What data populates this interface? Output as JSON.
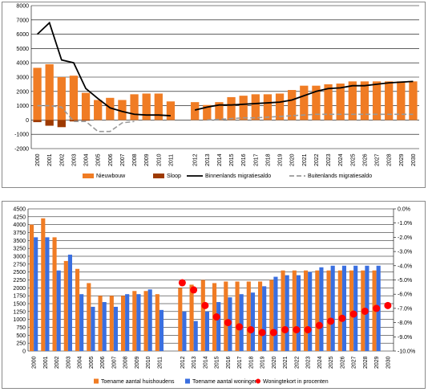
{
  "chart_data": [
    {
      "type": "bar",
      "x": [
        "2000",
        "2001",
        "2002",
        "2003",
        "2004",
        "2005",
        "2006",
        "2007",
        "2008",
        "2009",
        "2010",
        "2011",
        "",
        "2012",
        "2013",
        "2014",
        "2015",
        "2016",
        "2017",
        "2018",
        "2019",
        "2020",
        "2021",
        "2022",
        "2023",
        "2024",
        "2025",
        "2026",
        "2027",
        "2028",
        "2029",
        "2030"
      ],
      "ylim": [
        -2000,
        8000
      ],
      "yticks": [
        -2000,
        -1000,
        0,
        1000,
        2000,
        3000,
        4000,
        5000,
        6000,
        7000,
        8000
      ],
      "grid": true,
      "legend_position": "bottom",
      "series": [
        {
          "name": "Nieuwbouw",
          "kind": "bar",
          "color": "#f07c24",
          "values": [
            3650,
            3900,
            3000,
            3100,
            1900,
            1400,
            1550,
            1400,
            1800,
            1850,
            1850,
            1300,
            null,
            1250,
            1050,
            1250,
            1600,
            1700,
            1800,
            1800,
            1850,
            2100,
            2400,
            2400,
            2500,
            2550,
            2700,
            2700,
            2700,
            2700,
            2700,
            2700
          ]
        },
        {
          "name": "Sloop",
          "kind": "bar",
          "color": "#9e3a00",
          "values": [
            -150,
            -400,
            -500,
            -100,
            -50,
            null,
            null,
            null,
            null,
            null,
            null,
            null,
            null,
            null,
            null,
            null,
            null,
            null,
            null,
            null,
            null,
            null,
            null,
            null,
            null,
            null,
            null,
            null,
            null,
            null,
            null,
            null
          ]
        },
        {
          "name": "Binnenlands migratiesaldo",
          "kind": "line",
          "style": "solid",
          "color": "#000000",
          "values": [
            6000,
            6800,
            4200,
            4000,
            2200,
            1500,
            850,
            600,
            400,
            350,
            350,
            300,
            null,
            700,
            900,
            1050,
            1050,
            1100,
            1150,
            1200,
            1250,
            1400,
            1700,
            2000,
            2200,
            2250,
            2400,
            2400,
            2500,
            2600,
            2650,
            2700
          ]
        },
        {
          "name": "Buitenlands migratiesaldo",
          "kind": "line",
          "style": "dashed",
          "color": "#999999",
          "values": [
            1000,
            1000,
            900,
            -100,
            -100,
            -800,
            -800,
            -200,
            -100,
            null,
            null,
            null,
            null,
            null,
            0,
            50,
            100,
            150,
            150,
            200,
            250,
            300,
            350,
            400,
            400,
            400,
            400,
            400,
            400,
            400,
            400,
            400
          ]
        }
      ]
    },
    {
      "type": "bar",
      "x": [
        "2000",
        "2001",
        "2002",
        "2003",
        "2004",
        "2005",
        "2006",
        "2007",
        "2008",
        "2009",
        "2010",
        "2011",
        "",
        "2012",
        "2013",
        "2014",
        "2015",
        "2016",
        "2017",
        "2018",
        "2019",
        "2020",
        "2021",
        "2022",
        "2023",
        "2024",
        "2025",
        "2026",
        "2027",
        "2028",
        "2029",
        "2030"
      ],
      "ylim": [
        0,
        4500
      ],
      "yticks": [
        0,
        250,
        500,
        750,
        1000,
        1250,
        1500,
        1750,
        2000,
        2250,
        2500,
        2750,
        3000,
        3250,
        3500,
        3750,
        4000,
        4250,
        4500
      ],
      "y2lim": [
        -10,
        0
      ],
      "y2ticks": [
        "0.0%",
        "-1.0%",
        "-2.0%",
        "-3.0%",
        "-4.0%",
        "-5.0%",
        "-6.0%",
        "-7.0%",
        "-8.0%",
        "-9.0%",
        "-10.0%"
      ],
      "grid": true,
      "legend_position": "bottom",
      "series": [
        {
          "name": "Toename aantal huishoudens",
          "kind": "bar",
          "color": "#f07c24",
          "values": [
            4000,
            4200,
            3600,
            2850,
            2600,
            2150,
            1750,
            1750,
            1750,
            1900,
            1900,
            1800,
            null,
            2000,
            2100,
            2250,
            2150,
            2200,
            2200,
            2200,
            2200,
            2250,
            2550,
            2550,
            2550,
            2550,
            2550,
            2550,
            2550,
            2550,
            2550,
            null
          ]
        },
        {
          "name": "Toename aantal woningen",
          "kind": "bar",
          "color": "#3a6fe0",
          "values": [
            3600,
            3600,
            2550,
            3050,
            1800,
            1400,
            1550,
            1400,
            1800,
            1800,
            1950,
            1300,
            null,
            1250,
            950,
            1250,
            1550,
            1700,
            1800,
            1850,
            2050,
            2350,
            2400,
            2400,
            2500,
            2650,
            2700,
            2700,
            2700,
            2700,
            2700,
            null
          ]
        },
        {
          "name": "Woningtekort in procenten",
          "kind": "scatter",
          "axis": "right",
          "color": "#ff0000",
          "values": [
            null,
            null,
            null,
            null,
            null,
            null,
            null,
            null,
            null,
            null,
            null,
            null,
            null,
            -5.2,
            -5.7,
            -6.8,
            -7.6,
            -8.0,
            -8.3,
            -8.5,
            -8.7,
            -8.7,
            -8.5,
            -8.5,
            -8.5,
            -8.2,
            -7.9,
            -7.7,
            -7.4,
            -7.2,
            -7.0,
            -6.8
          ]
        }
      ]
    }
  ]
}
